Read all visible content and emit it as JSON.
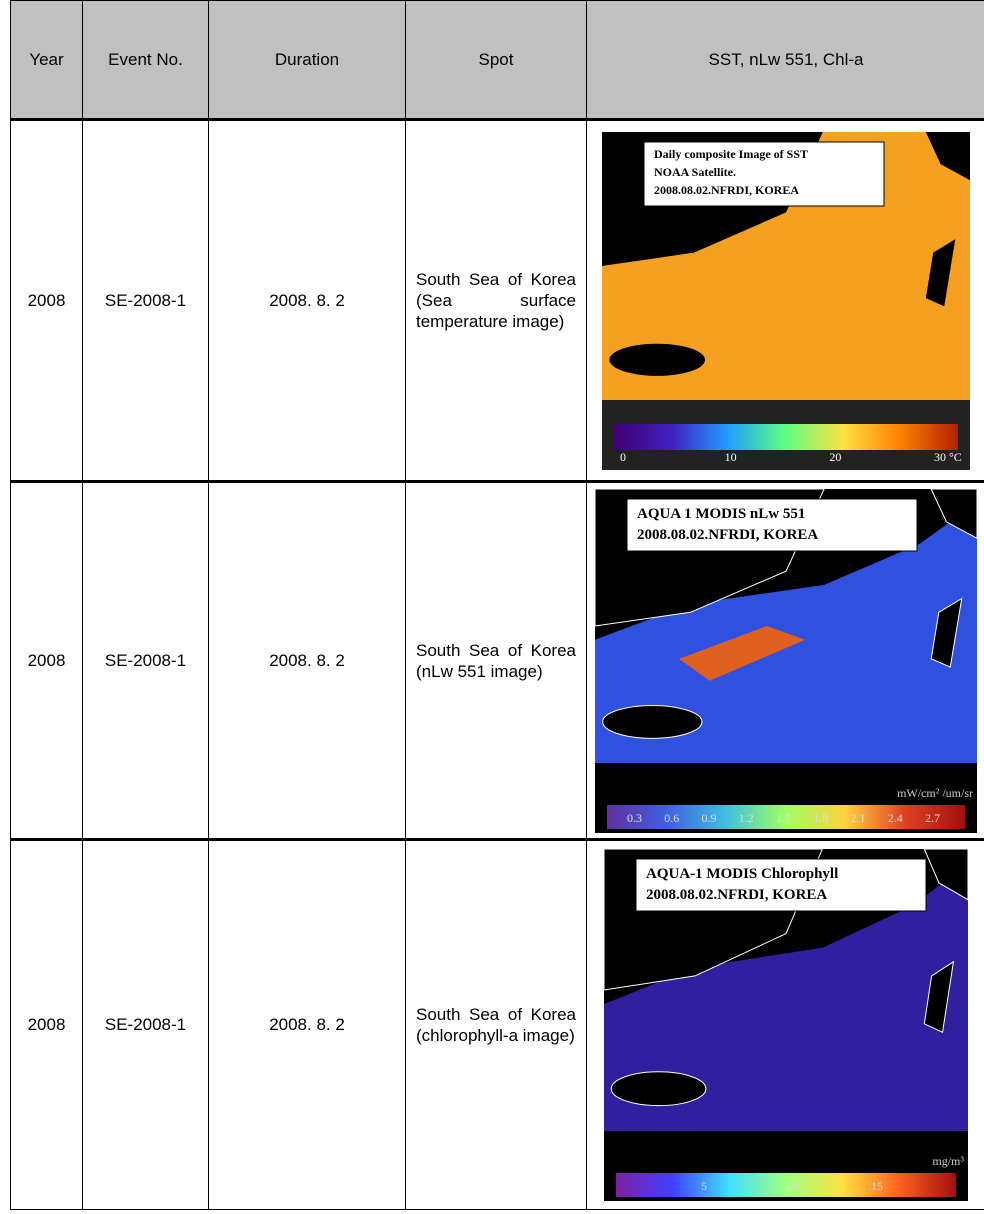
{
  "table": {
    "header": [
      "Year",
      "Event No.",
      "Duration",
      "Spot",
      "SST, nLw 551, Chl-a"
    ],
    "rows": [
      {
        "year": "2008",
        "event": "SE-2008-1",
        "duration": "2008. 8. 2",
        "spot": [
          "South Sea of Korea",
          "(Sea surface temperature image)"
        ],
        "image": {
          "caption": [
            "Daily composite Image of SST",
            "NOAA Satellite.",
            "2008.08.02.NFRDI, KOREA"
          ],
          "scale_labels": [
            "0",
            "10",
            "20",
            "30 °C"
          ]
        }
      },
      {
        "year": "2008",
        "event": "SE-2008-1",
        "duration": "2008. 8. 2",
        "spot": [
          "South Sea of Korea",
          "(nLw 551 image)"
        ],
        "image": {
          "caption": [
            "AQUA 1 MODIS nLw 551",
            "2008.08.02.NFRDI, KOREA"
          ],
          "unit": "mW/cm² /um/sr",
          "scale_labels": [
            "0.3",
            "0.6",
            "0.9",
            "1.2",
            "1.5",
            "1.8",
            "2.1",
            "2.4",
            "2.7"
          ]
        }
      },
      {
        "year": "2008",
        "event": "SE-2008-1",
        "duration": "2008. 8. 2",
        "spot": [
          "South Sea of Korea",
          "(chlorophyll-a image)"
        ],
        "image": {
          "caption": [
            "AQUA-1 MODIS Chlorophyll",
            "2008.08.02.NFRDI, KOREA"
          ],
          "unit": "mg/m³",
          "scale_labels": [
            "5",
            "10",
            "15"
          ]
        }
      }
    ]
  }
}
